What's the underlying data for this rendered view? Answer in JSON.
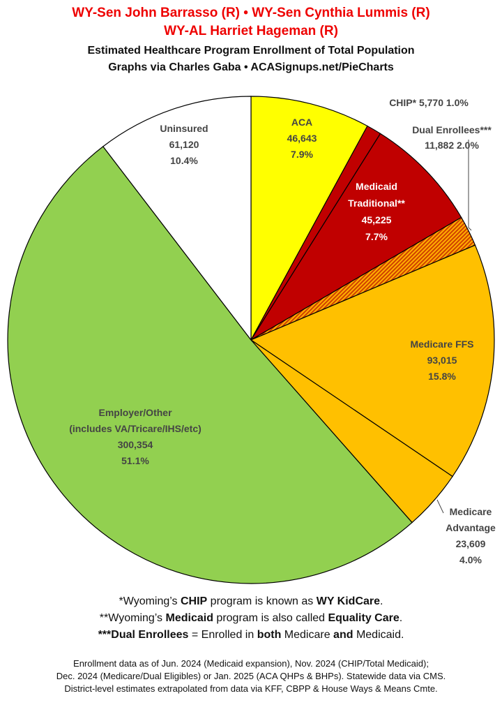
{
  "header": {
    "title_line1": "WY-Sen John Barrasso (R) • WY-Sen Cynthia Lummis (R)",
    "title_line2": "WY-AL Harriet Hageman (R)",
    "subtitle_line1": "Estimated Healthcare Program Enrollment of Total Population",
    "subtitle_line2": "Graphs via Charles Gaba   •   ACASignups.net/PieCharts"
  },
  "chart_data": {
    "type": "pie",
    "start_angle_deg": 0,
    "direction": "clockwise",
    "slices": [
      {
        "name": "ACA",
        "value": 46643,
        "value_label": "46,643",
        "percent": "7.9%",
        "color": "#ffff00",
        "label_lines": [
          "ACA",
          "46,643",
          "7.9%"
        ],
        "label_color": "#444444"
      },
      {
        "name": "CHIP*",
        "value": 5770,
        "value_label": "5,770",
        "percent": "1.0%",
        "color": "#c00000",
        "label_lines": [
          "CHIP* 5,770 1.0%"
        ],
        "label_color": "#444444"
      },
      {
        "name": "Medicaid Traditional**",
        "value": 45225,
        "value_label": "45,225",
        "percent": "7.7%",
        "color": "#c00000",
        "label_lines": [
          "Medicaid",
          "Traditional**",
          "45,225",
          "7.7%"
        ],
        "label_color": "#ffffff"
      },
      {
        "name": "Dual Enrollees***",
        "value": 11882,
        "value_label": "11,882",
        "percent": "2.0%",
        "color": "#f07800",
        "pattern": "stripes",
        "label_lines": [
          "Dual Enrollees***",
          "11,882 2.0%"
        ],
        "label_color": "#444444"
      },
      {
        "name": "Medicare FFS",
        "value": 93015,
        "value_label": "93,015",
        "percent": "15.8%",
        "color": "#ffc000",
        "label_lines": [
          "Medicare FFS",
          "93,015",
          "15.8%"
        ],
        "label_color": "#444444"
      },
      {
        "name": "Medicare Advantage",
        "value": 23609,
        "value_label": "23,609",
        "percent": "4.0%",
        "color": "#ffc000",
        "label_lines": [
          "Medicare",
          "Advantage",
          "23,609",
          "4.0%"
        ],
        "label_color": "#444444"
      },
      {
        "name": "Employer/Other",
        "value": 300354,
        "value_label": "300,354",
        "percent": "51.1%",
        "color": "#92d050",
        "label_lines": [
          "Employer/Other",
          "(includes VA/Tricare/IHS/etc)",
          "300,354",
          "51.1%"
        ],
        "label_color": "#444444"
      },
      {
        "name": "Uninsured",
        "value": 61120,
        "value_label": "61,120",
        "percent": "10.4%",
        "color": "#ffffff",
        "label_lines": [
          "Uninsured",
          "61,120",
          "10.4%"
        ],
        "label_color": "#444444"
      }
    ]
  },
  "notes": {
    "chip_note": "*Wyoming’s CHIP program is known as WY KidCare.",
    "medicaid_note": "**Wyoming’s Medicaid program is also called Equality Care.",
    "dual_note": "***Dual Enrollees = Enrolled in both Medicare and Medicaid."
  },
  "source": {
    "line1": "Enrollment data as of Jun. 2024 (Medicaid expansion), Nov. 2024 (CHIP/Total Medicaid);",
    "line2": "Dec. 2024 (Medicare/Dual Eligibles) or Jan. 2025 (ACA QHPs & BHPs). Statewide data via CMS.",
    "line3": "District-level estimates extrapolated from data via KFF, CBPP & House Ways & Means Cmte."
  }
}
